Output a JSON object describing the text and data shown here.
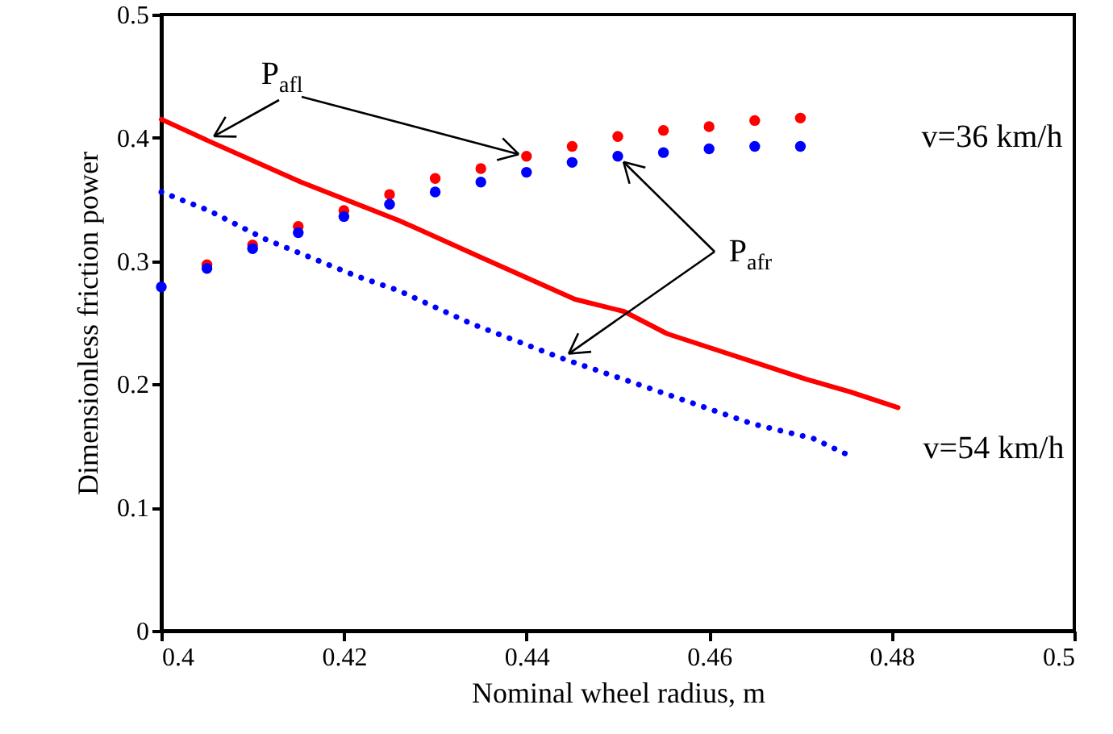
{
  "chart_data": {
    "type": "scatter",
    "xlabel": "Nominal wheel radius, m",
    "ylabel": "Dimensionless friction power",
    "xlim": [
      0.4,
      0.5
    ],
    "xticks": [
      0.4,
      0.42,
      0.44,
      0.46,
      0.48,
      0.5
    ],
    "ylim": [
      0,
      0.5
    ],
    "yticks": [
      0,
      0.1,
      0.2,
      0.3,
      0.4,
      0.5
    ],
    "grid": false,
    "series": [
      {
        "marker": "circle",
        "color": "#ff0000",
        "x": [
          0.405,
          0.41,
          0.415,
          0.42,
          0.425,
          0.43,
          0.435,
          0.44,
          0.445,
          0.45,
          0.455,
          0.46,
          0.465,
          0.47
        ],
        "values": [
          0.297,
          0.313,
          0.328,
          0.341,
          0.354,
          0.367,
          0.375,
          0.385,
          0.393,
          0.401,
          0.406,
          0.409,
          0.414,
          0.416
        ]
      },
      {
        "marker": "circle",
        "color": "#0000ff",
        "x": [
          0.4,
          0.405,
          0.41,
          0.415,
          0.42,
          0.425,
          0.43,
          0.435,
          0.44,
          0.445,
          0.45,
          0.455,
          0.46,
          0.465,
          0.47
        ],
        "values": [
          0.279,
          0.294,
          0.31,
          0.323,
          0.336,
          0.346,
          0.356,
          0.364,
          0.372,
          0.38,
          0.385,
          0.388,
          0.391,
          0.393,
          0.393
        ]
      },
      {
        "type": "line",
        "line_style": "solid",
        "color": "#ff0000",
        "x": [
          0.4,
          0.405,
          0.4153,
          0.426,
          0.435,
          0.4453,
          0.4507,
          0.4554,
          0.4707,
          0.4754,
          0.4807
        ],
        "values": [
          0.415,
          0.398,
          0.364,
          0.333,
          0.303,
          0.269,
          0.259,
          0.241,
          0.204,
          0.194,
          0.181
        ]
      },
      {
        "type": "line",
        "line_style": "dotted",
        "color": "#0000ff",
        "x": [
          0.4,
          0.4052,
          0.4113,
          0.4153,
          0.4213,
          0.426,
          0.434,
          0.4439,
          0.4526,
          0.4647,
          0.4714,
          0.4754
        ],
        "values": [
          0.356,
          0.341,
          0.318,
          0.306,
          0.288,
          0.276,
          0.249,
          0.221,
          0.199,
          0.168,
          0.156,
          0.142
        ]
      }
    ],
    "annotations": [
      {
        "text": "P$_{afl}$",
        "x": 0.44,
        "y": 0.385
      },
      {
        "text": "P$_{afr}$",
        "x": 0.45,
        "y": 0.385
      },
      "v=36 km/h",
      "v=54 km/h"
    ]
  }
}
